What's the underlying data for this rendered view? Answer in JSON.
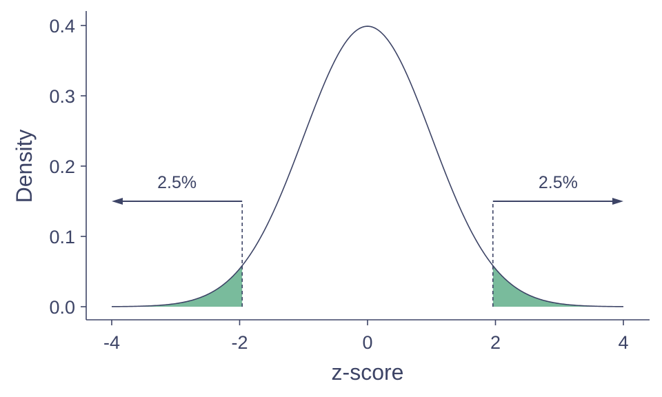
{
  "chart_data": {
    "type": "area",
    "title": "",
    "xlabel": "z-score",
    "ylabel": "Density",
    "xlim": [
      -4,
      4
    ],
    "ylim": [
      0,
      0.4
    ],
    "xticks": [
      "-4",
      "-2",
      "0",
      "2",
      "4"
    ],
    "yticks": [
      "0.0",
      "0.1",
      "0.2",
      "0.3",
      "0.4"
    ],
    "grid": false,
    "legend": "none",
    "series": [
      {
        "kind": "normal-density",
        "mean": 0,
        "sd": 1,
        "x_range": [
          -4,
          4
        ]
      }
    ],
    "shaded_regions": [
      {
        "x_from": -4,
        "x_to": -1.96
      },
      {
        "x_from": 1.96,
        "x_to": 4
      }
    ],
    "cutoffs": [
      -1.96,
      1.96
    ],
    "arrow_y": 0.15,
    "annotations": [
      {
        "text": "2.5%",
        "side": "left"
      },
      {
        "text": "2.5%",
        "side": "right"
      }
    ],
    "colors": {
      "line": "#3d4466",
      "shade": "#79bb9c",
      "axis": "#3d4466",
      "text": "#3d4466"
    }
  }
}
